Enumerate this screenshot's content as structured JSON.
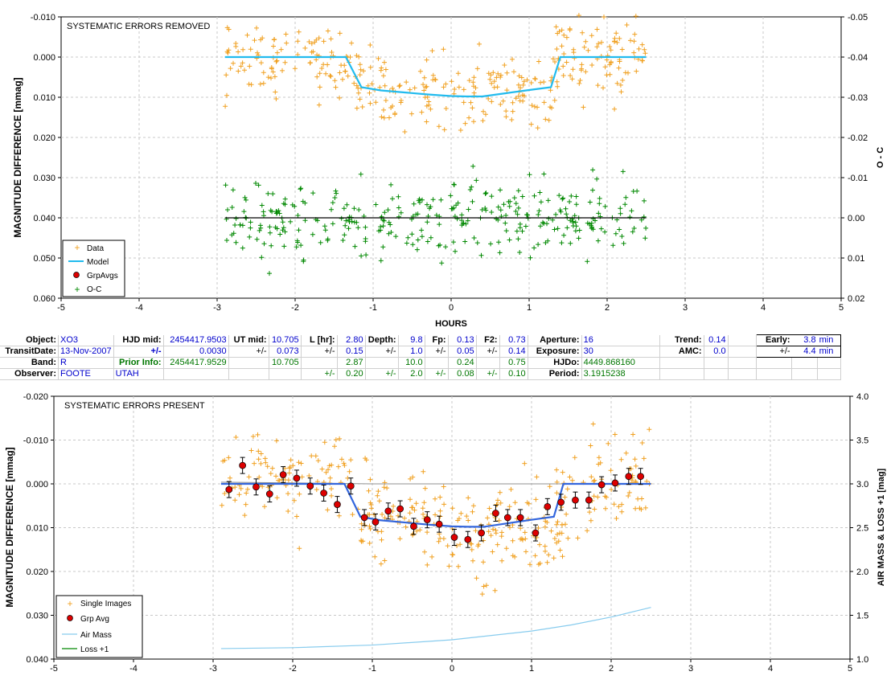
{
  "colors": {
    "data": "#f0a020",
    "model_top": "#22bbee",
    "model_bottom": "#3366dd",
    "grpavg": "#dd0000",
    "oc": "#008800",
    "airmass": "#88ccee",
    "loss": "#008800",
    "trendline": "#000000"
  },
  "top_chart": {
    "title": "SYSTEMATIC ERRORS REMOVED",
    "ylabel": "MAGNITUDE DIFFERENCE [mmag]",
    "y2label": "O - C",
    "xlabel": "HOURS",
    "xticks": [
      "-5",
      "-4",
      "-3",
      "-2",
      "-1",
      "0",
      "1",
      "2",
      "3",
      "4",
      "5"
    ],
    "yticks": [
      "-0.010",
      "0.000",
      "0.010",
      "0.020",
      "0.030",
      "0.040",
      "0.050",
      "0.060"
    ],
    "y2ticks": [
      "-0.05",
      "-0.04",
      "-0.03",
      "-0.02",
      "-0.01",
      "0.00",
      "0.01",
      "0.02"
    ],
    "legend": [
      "Data",
      "Model",
      "GrpAvgs",
      "O-C"
    ]
  },
  "bottom_chart": {
    "title": "SYSTEMATIC ERRORS PRESENT",
    "ylabel": "MAGNITUDE DIFFERENCE [mmag]",
    "y2label": "AIR MASS & LOSS +1 [mag]",
    "xticks": [
      "-5",
      "-4",
      "-3",
      "-2",
      "-1",
      "0",
      "1",
      "2",
      "3",
      "4",
      "5"
    ],
    "yticks": [
      "-0.020",
      "-0.010",
      "0.000",
      "0.010",
      "0.020",
      "0.030",
      "0.040"
    ],
    "y2ticks": [
      "4.0",
      "3.5",
      "3.0",
      "2.5",
      "2.0",
      "1.5",
      "1.0"
    ],
    "legend": [
      "Single Images",
      "Grp Avg",
      "Air Mass",
      "Loss +1"
    ]
  },
  "table": {
    "row1": {
      "object_label": "Object:",
      "object": "XO3",
      "hjd_mid_label": "HJD mid:",
      "hjd_mid": "2454417.9503",
      "ut_mid_label": "UT mid:",
      "ut_mid": "10.705",
      "l_label": "L [hr]:",
      "l": "2.80",
      "depth_label": "Depth:",
      "depth": "9.8",
      "fp_label": "Fp:",
      "fp": "0.13",
      "f2_label": "F2:",
      "f2": "0.73",
      "aperture_label": "Aperture:",
      "aperture": "16",
      "trend_label": "Trend:",
      "trend": "0.14",
      "early_label": "Early:",
      "early": "3.8",
      "early_unit": "min"
    },
    "row2": {
      "transit_label": "TransitDate:",
      "transit": "13-Nov-2007",
      "pm": "+/-",
      "hjd_err": "0.0030",
      "ut_err": "0.073",
      "l_err": "0.15",
      "depth_err": "1.0",
      "fp_err": "0.05",
      "f2_err": "0.14",
      "exposure_label": "Exposure:",
      "exposure": "30",
      "amc_label": "AMC:",
      "amc": "0.0",
      "early_err": "4.4",
      "early_err_unit": "min"
    },
    "row3": {
      "band_label": "Band:",
      "band": "R",
      "prior_label": "Prior Info:",
      "prior_hjd": "2454417.9529",
      "prior_ut": "10.705",
      "prior_l": "2.87",
      "prior_depth": "10.0",
      "prior_fp": "0.24",
      "prior_f2": "0.75",
      "hjdo_label": "HJDo:",
      "hjdo": "4449.868160"
    },
    "row4": {
      "observer_label": "Observer:",
      "observer": "FOOTE",
      "site": "UTAH",
      "pm": "+/-",
      "prior_l_err": "0.20",
      "prior_depth_err": "2.0",
      "prior_fp_err": "0.08",
      "prior_f2_err": "0.10",
      "period_label": "Period:",
      "period": "3.1915238"
    }
  },
  "chart_data": [
    {
      "type": "scatter",
      "title": "SYSTEMATIC ERRORS REMOVED",
      "xlabel": "HOURS",
      "ylabel": "MAGNITUDE DIFFERENCE [mmag]",
      "y2label": "O - C",
      "xlim": [
        -5,
        5
      ],
      "ylim": [
        -0.01,
        0.06
      ],
      "y2lim": [
        -0.05,
        0.02
      ],
      "grid": true,
      "legend_position": "bottom-left",
      "series": [
        {
          "name": "Model",
          "x": [
            -2.9,
            -1.35,
            -1.15,
            -0.9,
            -0.6,
            -0.3,
            0.0,
            0.2,
            0.4,
            0.7,
            1.0,
            1.28,
            1.4,
            1.9,
            2.5
          ],
          "y": [
            0.0,
            0.0,
            0.0075,
            0.0083,
            0.0088,
            0.0093,
            0.0097,
            0.0098,
            0.0098,
            0.009,
            0.0082,
            0.0075,
            0.0,
            0.0,
            0.0
          ]
        },
        {
          "name": "O-C",
          "x": [
            -2.9,
            2.5
          ],
          "y": [
            0.0,
            0.0
          ]
        }
      ]
    },
    {
      "type": "scatter",
      "title": "SYSTEMATIC ERRORS PRESENT",
      "ylabel": "MAGNITUDE DIFFERENCE [mmag]",
      "y2label": "AIR MASS & LOSS +1 [mag]",
      "xlim": [
        -5,
        5
      ],
      "ylim": [
        -0.02,
        0.04
      ],
      "y2lim": [
        1.0,
        4.0
      ],
      "grid": true,
      "legend_position": "bottom-left",
      "series": [
        {
          "name": "Grp Avg",
          "x": [
            -2.8,
            -2.63,
            -2.46,
            -2.29,
            -2.12,
            -1.95,
            -1.78,
            -1.61,
            -1.44,
            -1.27,
            -1.1,
            -0.96,
            -0.8,
            -0.65,
            -0.48,
            -0.31,
            -0.16,
            0.03,
            0.2,
            0.37,
            0.55,
            0.7,
            0.86,
            1.05,
            1.2,
            1.37,
            1.55,
            1.72,
            1.88,
            2.05,
            2.22,
            2.37
          ],
          "y": [
            0.0013,
            -0.0042,
            0.0007,
            0.0023,
            -0.0021,
            -0.0013,
            0.0005,
            0.0021,
            0.0047,
            0.0005,
            0.0077,
            0.0087,
            0.0062,
            0.0057,
            0.0097,
            0.0082,
            0.0092,
            0.0122,
            0.0127,
            0.0112,
            0.0067,
            0.0077,
            0.0077,
            0.0112,
            0.0052,
            0.0042,
            0.0037,
            0.0037,
            0.0002,
            -0.0002,
            -0.0017,
            -0.0017
          ]
        },
        {
          "name": "Air Mass",
          "x": [
            -2.9,
            -2.0,
            -1.0,
            0.0,
            1.0,
            1.5,
            2.0,
            2.5
          ],
          "y": [
            1.12,
            1.13,
            1.16,
            1.22,
            1.32,
            1.39,
            1.48,
            1.59
          ]
        },
        {
          "name": "Loss +1",
          "x": [
            -2.9,
            -1.0,
            0.0,
            1.0,
            2.5
          ],
          "y": [
            3.02,
            3.0,
            3.0,
            3.0,
            3.0
          ]
        }
      ]
    }
  ]
}
